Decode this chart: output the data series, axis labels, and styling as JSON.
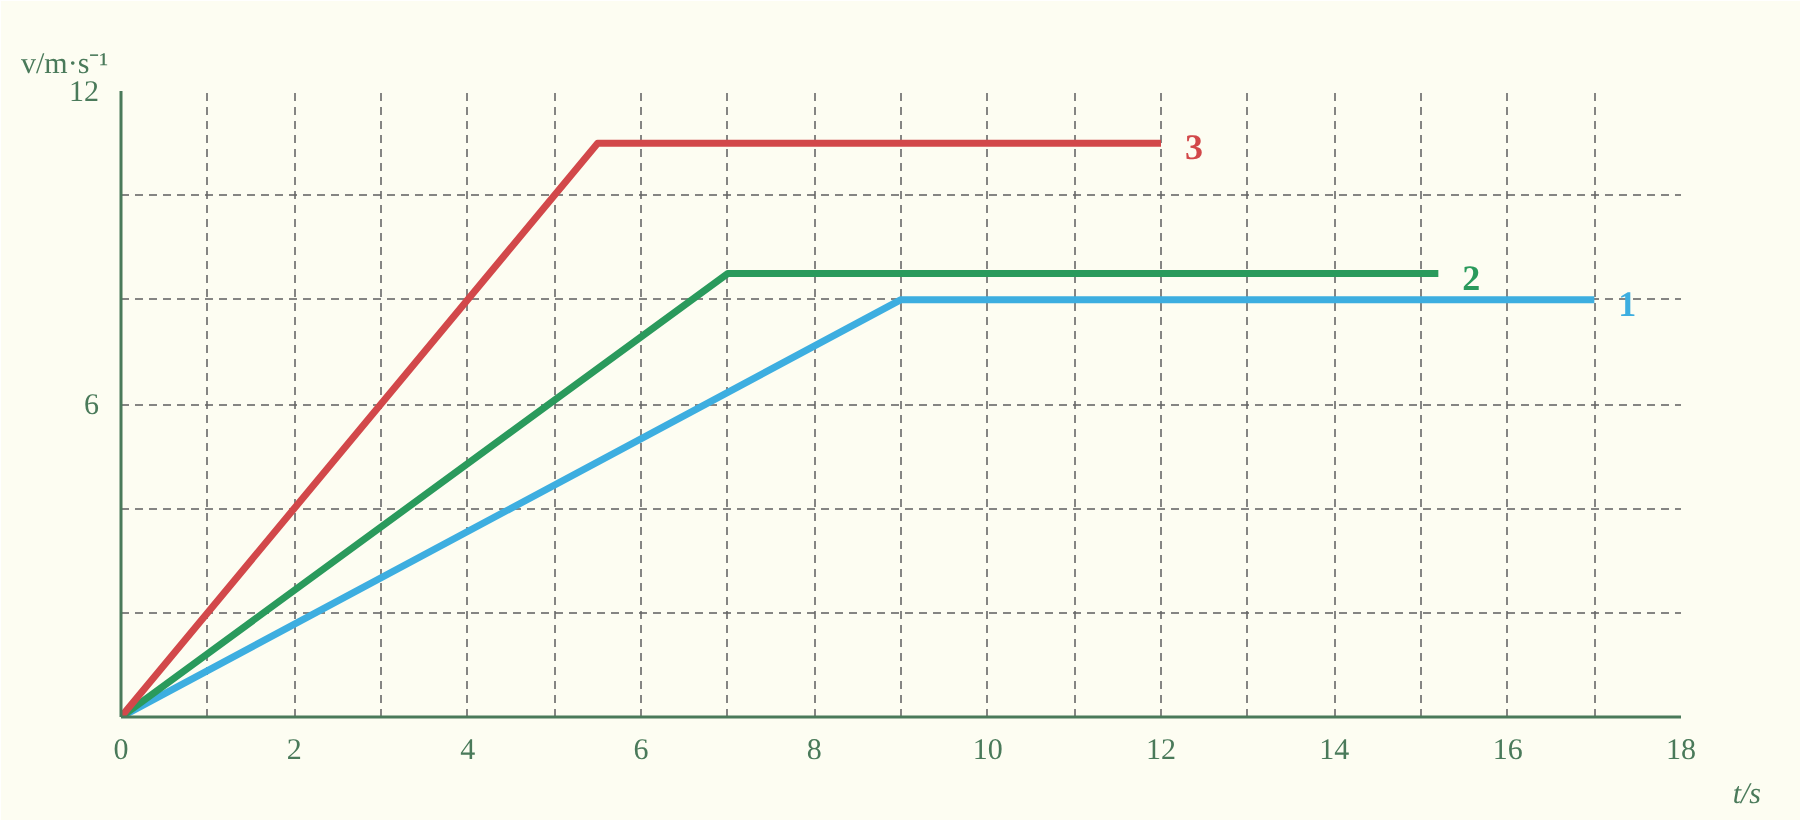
{
  "chart_data": {
    "type": "line",
    "xlabel": "t/s",
    "ylabel": "v/m·s⁻¹",
    "xlim": [
      0,
      18
    ],
    "ylim": [
      0,
      12
    ],
    "xticks": [
      0,
      {
        "value": 1,
        "label": null
      },
      2,
      {
        "value": 3,
        "label": null
      },
      4,
      {
        "value": 5,
        "label": null
      },
      6,
      {
        "value": 7,
        "label": null
      },
      8,
      {
        "value": 9,
        "label": null
      },
      10,
      {
        "value": 11,
        "label": null
      },
      12,
      {
        "value": 13,
        "label": null
      },
      14,
      {
        "value": 15,
        "label": null
      },
      16,
      {
        "value": 17,
        "label": null
      },
      18
    ],
    "yticks": [
      {
        "value": 2,
        "label": null
      },
      {
        "value": 4,
        "label": null
      },
      6,
      {
        "value": 8,
        "label": null
      },
      {
        "value": 10,
        "label": null
      },
      12
    ],
    "grid": true,
    "legend": false,
    "line_style": "solid",
    "series": [
      {
        "name": "1",
        "color": "#3daee0",
        "x": [
          0,
          9,
          17
        ],
        "values": [
          0,
          8,
          8
        ]
      },
      {
        "name": "2",
        "color": "#2a9a5c",
        "x": [
          0,
          7,
          15.2
        ],
        "values": [
          0,
          8.5,
          8.5
        ]
      },
      {
        "name": "3",
        "color": "#d2484a",
        "x": [
          0,
          5.5,
          12
        ],
        "values": [
          0,
          11,
          11
        ]
      }
    ]
  }
}
